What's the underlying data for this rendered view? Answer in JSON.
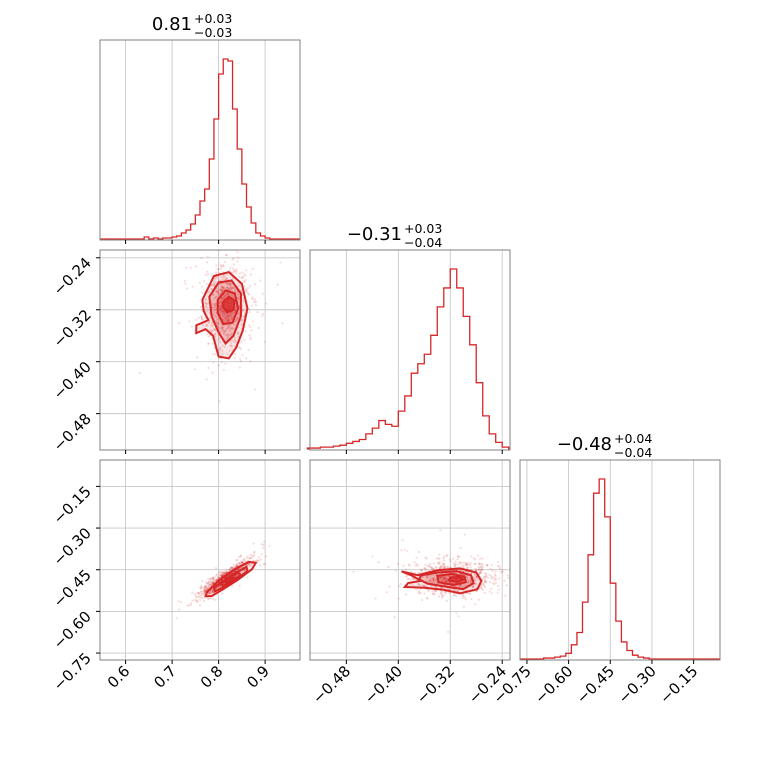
{
  "chart_data": {
    "type": "corner",
    "color": "#d62728",
    "grid": true,
    "parameters": [
      {
        "title_value": "0.81",
        "title_plus": "+0.03",
        "title_minus": "−0.03",
        "range": [
          0.545,
          0.975
        ],
        "ticks": [
          0.6,
          0.7,
          0.8,
          0.9
        ],
        "tick_labels": [
          "0.6",
          "0.7",
          "0.8",
          "0.9"
        ]
      },
      {
        "title_value": "−0.31",
        "title_plus": "+0.03",
        "title_minus": "−0.04",
        "range": [
          -0.536,
          -0.228
        ],
        "ticks": [
          -0.48,
          -0.4,
          -0.32,
          -0.24
        ],
        "tick_labels": [
          "−0.48",
          "−0.40",
          "−0.32",
          "−0.24"
        ]
      },
      {
        "title_value": "−0.48",
        "title_plus": "+0.04",
        "title_minus": "−0.04",
        "range": [
          -0.775,
          -0.055
        ],
        "ticks": [
          -0.75,
          -0.6,
          -0.45,
          -0.3,
          -0.15
        ],
        "tick_labels": [
          "−0.75",
          "−0.60",
          "−0.45",
          "−0.30",
          "−0.15"
        ]
      }
    ],
    "marginals": [
      {
        "bin_edges": [
          0.64,
          0.65,
          0.66,
          0.67,
          0.68,
          0.69,
          0.7,
          0.71,
          0.72,
          0.73,
          0.74,
          0.75,
          0.76,
          0.77,
          0.78,
          0.79,
          0.8,
          0.81,
          0.82,
          0.83,
          0.84,
          0.85,
          0.86,
          0.87,
          0.88,
          0.89,
          0.9,
          0.91,
          0.92
        ],
        "counts": [
          2,
          0,
          1,
          0,
          1,
          1,
          2,
          3,
          6,
          9,
          15,
          24,
          38,
          50,
          80,
          120,
          165,
          180,
          178,
          130,
          90,
          55,
          32,
          16,
          6,
          3,
          1,
          0
        ]
      },
      {
        "bin_edges": [
          -0.54,
          -0.53,
          -0.52,
          -0.51,
          -0.5,
          -0.49,
          -0.48,
          -0.47,
          -0.46,
          -0.45,
          -0.44,
          -0.43,
          -0.42,
          -0.41,
          -0.4,
          -0.39,
          -0.38,
          -0.37,
          -0.36,
          -0.35,
          -0.34,
          -0.33,
          -0.32,
          -0.31,
          -0.3,
          -0.29,
          -0.28,
          -0.27,
          -0.26,
          -0.25,
          -0.24,
          -0.23
        ],
        "counts": [
          1,
          1,
          2,
          2,
          3,
          4,
          6,
          8,
          10,
          16,
          22,
          30,
          26,
          24,
          40,
          56,
          80,
          90,
          100,
          120,
          150,
          170,
          190,
          170,
          140,
          110,
          70,
          35,
          16,
          7,
          2
        ]
      },
      {
        "bin_edges": [
          -0.69,
          -0.67,
          -0.65,
          -0.63,
          -0.61,
          -0.59,
          -0.57,
          -0.55,
          -0.53,
          -0.51,
          -0.49,
          -0.47,
          -0.45,
          -0.43,
          -0.41,
          -0.39,
          -0.37,
          -0.35,
          -0.33,
          -0.31
        ],
        "counts": [
          1,
          1,
          2,
          3,
          6,
          15,
          28,
          60,
          110,
          175,
          190,
          150,
          80,
          40,
          18,
          9,
          4,
          2,
          1
        ]
      }
    ],
    "joint": [
      {
        "x_param": 0,
        "y_param": 1,
        "contours": [
          [
            [
              0.765,
              -0.305
            ],
            [
              0.79,
              -0.268
            ],
            [
              0.822,
              -0.262
            ],
            [
              0.85,
              -0.28
            ],
            [
              0.862,
              -0.318
            ],
            [
              0.852,
              -0.352
            ],
            [
              0.838,
              -0.378
            ],
            [
              0.822,
              -0.395
            ],
            [
              0.8,
              -0.392
            ],
            [
              0.788,
              -0.36
            ],
            [
              0.772,
              -0.35
            ],
            [
              0.752,
              -0.356
            ],
            [
              0.752,
              -0.344
            ],
            [
              0.778,
              -0.336
            ],
            [
              0.768,
              -0.322
            ]
          ],
          [
            [
              0.78,
              -0.3
            ],
            [
              0.8,
              -0.278
            ],
            [
              0.828,
              -0.275
            ],
            [
              0.848,
              -0.295
            ],
            [
              0.848,
              -0.33
            ],
            [
              0.832,
              -0.36
            ],
            [
              0.815,
              -0.372
            ],
            [
              0.8,
              -0.355
            ],
            [
              0.785,
              -0.33
            ]
          ],
          [
            [
              0.798,
              -0.305
            ],
            [
              0.815,
              -0.29
            ],
            [
              0.835,
              -0.295
            ],
            [
              0.842,
              -0.318
            ],
            [
              0.83,
              -0.34
            ],
            [
              0.81,
              -0.342
            ],
            [
              0.798,
              -0.325
            ]
          ],
          [
            [
              0.81,
              -0.308
            ],
            [
              0.822,
              -0.3
            ],
            [
              0.834,
              -0.306
            ],
            [
              0.832,
              -0.32
            ],
            [
              0.818,
              -0.324
            ],
            [
              0.81,
              -0.316
            ]
          ]
        ],
        "samples": {
          "center": [
            0.815,
            -0.315
          ],
          "spread": [
            0.045,
            0.055
          ],
          "count": 900
        }
      },
      {
        "x_param": 0,
        "y_param": 2,
        "contours": [
          [
            [
              0.775,
              -0.53
            ],
            [
              0.8,
              -0.49
            ],
            [
              0.835,
              -0.448
            ],
            [
              0.865,
              -0.422
            ],
            [
              0.88,
              -0.425
            ],
            [
              0.872,
              -0.448
            ],
            [
              0.84,
              -0.488
            ],
            [
              0.805,
              -0.525
            ],
            [
              0.785,
              -0.545
            ],
            [
              0.772,
              -0.545
            ]
          ],
          [
            [
              0.79,
              -0.515
            ],
            [
              0.812,
              -0.488
            ],
            [
              0.838,
              -0.46
            ],
            [
              0.86,
              -0.44
            ],
            [
              0.862,
              -0.455
            ],
            [
              0.835,
              -0.488
            ],
            [
              0.808,
              -0.515
            ],
            [
              0.792,
              -0.528
            ]
          ],
          [
            [
              0.805,
              -0.5
            ],
            [
              0.822,
              -0.48
            ],
            [
              0.842,
              -0.46
            ],
            [
              0.848,
              -0.47
            ],
            [
              0.828,
              -0.49
            ],
            [
              0.81,
              -0.508
            ]
          ],
          [
            [
              0.815,
              -0.49
            ],
            [
              0.828,
              -0.478
            ],
            [
              0.836,
              -0.48
            ],
            [
              0.826,
              -0.492
            ],
            [
              0.816,
              -0.498
            ]
          ]
        ],
        "samples": {
          "center": [
            0.815,
            -0.48
          ],
          "spread": [
            0.045,
            0.055
          ],
          "count": 900,
          "correlation": 0.9
        }
      },
      {
        "x_param": 1,
        "y_param": 2,
        "contours": [
          [
            [
              -0.395,
              -0.456
            ],
            [
              -0.37,
              -0.47
            ],
            [
              -0.34,
              -0.452
            ],
            [
              -0.305,
              -0.445
            ],
            [
              -0.28,
              -0.46
            ],
            [
              -0.272,
              -0.49
            ],
            [
              -0.278,
              -0.52
            ],
            [
              -0.305,
              -0.535
            ],
            [
              -0.33,
              -0.522
            ],
            [
              -0.36,
              -0.515
            ],
            [
              -0.39,
              -0.512
            ],
            [
              -0.385,
              -0.498
            ],
            [
              -0.365,
              -0.49
            ],
            [
              -0.38,
              -0.47
            ]
          ],
          [
            [
              -0.365,
              -0.47
            ],
            [
              -0.34,
              -0.46
            ],
            [
              -0.31,
              -0.455
            ],
            [
              -0.288,
              -0.47
            ],
            [
              -0.284,
              -0.498
            ],
            [
              -0.3,
              -0.52
            ],
            [
              -0.33,
              -0.51
            ],
            [
              -0.355,
              -0.5
            ],
            [
              -0.368,
              -0.485
            ]
          ],
          [
            [
              -0.34,
              -0.472
            ],
            [
              -0.318,
              -0.465
            ],
            [
              -0.298,
              -0.475
            ],
            [
              -0.296,
              -0.495
            ],
            [
              -0.315,
              -0.505
            ],
            [
              -0.338,
              -0.495
            ]
          ],
          [
            [
              -0.32,
              -0.478
            ],
            [
              -0.306,
              -0.476
            ],
            [
              -0.3,
              -0.486
            ],
            [
              -0.31,
              -0.494
            ],
            [
              -0.322,
              -0.488
            ]
          ]
        ],
        "samples": {
          "center": [
            -0.315,
            -0.48
          ],
          "spread": [
            0.055,
            0.055
          ],
          "count": 900
        }
      }
    ]
  }
}
